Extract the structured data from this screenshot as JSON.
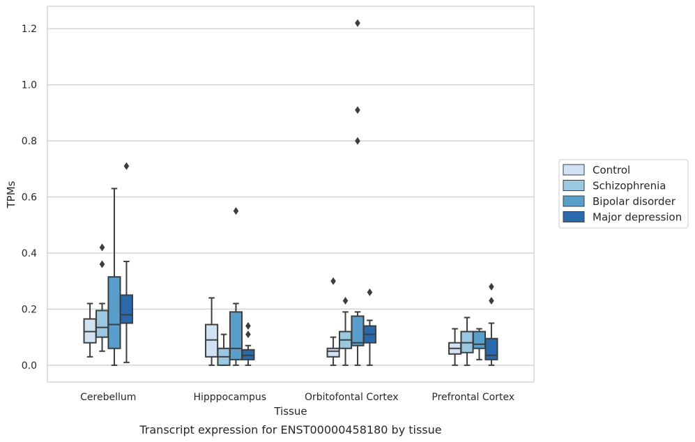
{
  "chart_data": {
    "type": "boxplot",
    "xlabel": "Tissue",
    "ylabel": "TPMs",
    "caption": "Transcript expression for ENST00000458180 by tissue",
    "ylim": [
      -0.06,
      1.28
    ],
    "yticks": [
      0.0,
      0.2,
      0.4,
      0.6,
      0.8,
      1.0,
      1.2
    ],
    "ytick_labels": [
      "0.0",
      "0.2",
      "0.4",
      "0.6",
      "0.8",
      "1.0",
      "1.2"
    ],
    "grid": "horizontal",
    "legend_position": "right",
    "categories": [
      "Cerebellum",
      "Hipppocampus",
      "Orbitofontal Cortex",
      "Prefrontal Cortex"
    ],
    "series": [
      {
        "name": "Control",
        "color": "#d1e2f3",
        "boxes": [
          {
            "whislo": 0.03,
            "q1": 0.08,
            "med": 0.12,
            "q3": 0.165,
            "whishi": 0.22,
            "fliers": []
          },
          {
            "whislo": 0.0,
            "q1": 0.03,
            "med": 0.09,
            "q3": 0.145,
            "whishi": 0.24,
            "fliers": []
          },
          {
            "whislo": 0.0,
            "q1": 0.03,
            "med": 0.05,
            "q3": 0.06,
            "whishi": 0.1,
            "fliers": [
              0.3
            ]
          },
          {
            "whislo": 0.0,
            "q1": 0.04,
            "med": 0.06,
            "q3": 0.08,
            "whishi": 0.13,
            "fliers": []
          }
        ]
      },
      {
        "name": "Schizophrenia",
        "color": "#9ac8e0",
        "boxes": [
          {
            "whislo": 0.05,
            "q1": 0.1,
            "med": 0.135,
            "q3": 0.195,
            "whishi": 0.22,
            "fliers": [
              0.36,
              0.42
            ]
          },
          {
            "whislo": 0.0,
            "q1": 0.0,
            "med": 0.03,
            "q3": 0.06,
            "whishi": 0.11,
            "fliers": []
          },
          {
            "whislo": 0.0,
            "q1": 0.06,
            "med": 0.09,
            "q3": 0.12,
            "whishi": 0.19,
            "fliers": [
              0.23
            ]
          },
          {
            "whislo": 0.0,
            "q1": 0.045,
            "med": 0.08,
            "q3": 0.12,
            "whishi": 0.17,
            "fliers": []
          }
        ]
      },
      {
        "name": "Bipolar disorder",
        "color": "#5a9ecb",
        "boxes": [
          {
            "whislo": 0.0,
            "q1": 0.06,
            "med": 0.145,
            "q3": 0.315,
            "whishi": 0.63,
            "fliers": []
          },
          {
            "whislo": 0.0,
            "q1": 0.02,
            "med": 0.06,
            "q3": 0.19,
            "whishi": 0.22,
            "fliers": [
              0.55
            ]
          },
          {
            "whislo": 0.0,
            "q1": 0.07,
            "med": 0.08,
            "q3": 0.175,
            "whishi": 0.19,
            "fliers": [
              0.8,
              0.91,
              1.22
            ]
          },
          {
            "whislo": 0.02,
            "q1": 0.06,
            "med": 0.075,
            "q3": 0.12,
            "whishi": 0.13,
            "fliers": []
          }
        ]
      },
      {
        "name": "Major depression",
        "color": "#2a6aac",
        "boxes": [
          {
            "whislo": 0.01,
            "q1": 0.15,
            "med": 0.18,
            "q3": 0.25,
            "whishi": 0.37,
            "fliers": [
              0.71
            ]
          },
          {
            "whislo": 0.0,
            "q1": 0.02,
            "med": 0.035,
            "q3": 0.055,
            "whishi": 0.07,
            "fliers": [
              0.11,
              0.14
            ]
          },
          {
            "whislo": 0.0,
            "q1": 0.08,
            "med": 0.11,
            "q3": 0.14,
            "whishi": 0.16,
            "fliers": [
              0.26
            ]
          },
          {
            "whislo": 0.0,
            "q1": 0.02,
            "med": 0.035,
            "q3": 0.095,
            "whishi": 0.15,
            "fliers": [
              0.23,
              0.28
            ]
          }
        ]
      }
    ]
  }
}
